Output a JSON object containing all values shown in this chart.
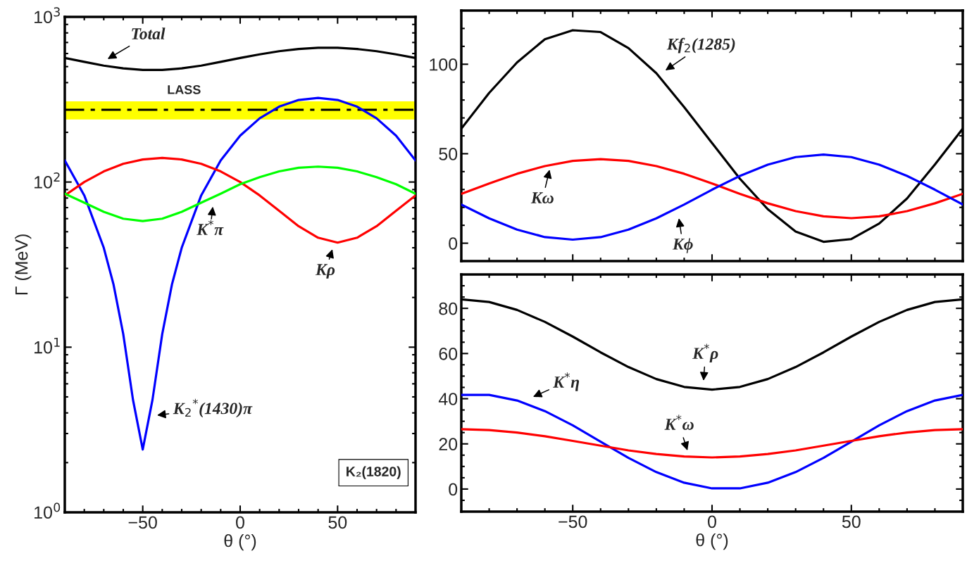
{
  "chart_data": [
    {
      "type": "line",
      "xlabel": "θ (°)",
      "ylabel": "Γ (MeV)",
      "log": "y",
      "xlim": [
        -90,
        90
      ],
      "xticks": [
        {
          "value": -50,
          "label": "−50"
        },
        0,
        50
      ],
      "ylim": [
        1,
        1000
      ],
      "yticks": [
        {
          "value": 1,
          "label": "10$^{0}$"
        },
        {
          "value": 10,
          "label": "10$^{1}$"
        },
        {
          "value": 100,
          "label": "10$^{2}$"
        },
        {
          "value": 1000,
          "label": "10$^{3}$"
        }
      ],
      "series": [
        {
          "color": "#000000",
          "x": [
            -90,
            -80,
            -70,
            -60,
            -50,
            -40,
            -30,
            -20,
            -10,
            0,
            10,
            20,
            30,
            40,
            50,
            60,
            70,
            80,
            90
          ],
          "values": [
            564,
            534,
            507,
            488,
            477,
            477,
            488,
            507,
            534,
            564,
            593,
            620,
            639,
            650,
            650,
            639,
            620,
            593,
            564
          ]
        },
        {
          "color": "#0000ff",
          "x": [
            -90,
            -80,
            -70,
            -65,
            -60,
            -55,
            -50,
            -45,
            -40,
            -35,
            -30,
            -20,
            -10,
            0,
            10,
            20,
            30,
            40,
            50,
            60,
            70,
            80,
            90
          ],
          "values": [
            135,
            83,
            40,
            24,
            12,
            4.8,
            2.4,
            4.8,
            12,
            24,
            40,
            83,
            135,
            191,
            243,
            286,
            314,
            323,
            314,
            286,
            243,
            191,
            135
          ]
        },
        {
          "color": "#ff0000",
          "x": [
            -90,
            -80,
            -70,
            -60,
            -50,
            -40,
            -30,
            -20,
            -10,
            0,
            10,
            20,
            30,
            40,
            50,
            60,
            70,
            80,
            90
          ],
          "values": [
            83,
            100,
            116,
            129,
            137,
            140,
            137,
            129,
            116,
            100,
            83,
            67,
            54,
            46,
            43,
            46,
            54,
            67,
            83
          ]
        },
        {
          "color": "#00ff00",
          "x": [
            -90,
            -80,
            -70,
            -60,
            -50,
            -40,
            -30,
            -20,
            -10,
            0,
            10,
            20,
            30,
            40,
            50,
            60,
            70,
            80,
            90
          ],
          "values": [
            85,
            75,
            66,
            60,
            58,
            60,
            66,
            75,
            85,
            97,
            107,
            116,
            122,
            124,
            122,
            116,
            107,
            97,
            85
          ]
        }
      ],
      "ref_lines": [
        {
          "axis": "y",
          "value": 274,
          "label": "LASS",
          "color": "#000000",
          "line_style": "dashdot"
        }
      ],
      "bands": [
        {
          "axis": "y",
          "from": 239,
          "to": 308,
          "color": "#ffff00"
        }
      ],
      "annotations": [
        "Total",
        "K$^{*}$π",
        "Kρ",
        "K$_{2}$$^{*}$(1430)π",
        "K₂(1820)"
      ]
    },
    {
      "type": "line",
      "tick_labels": "y",
      "xlim": [
        -90,
        90
      ],
      "xticks": [
        -50,
        0,
        50
      ],
      "ylim": [
        -10,
        130
      ],
      "yticks": [
        0,
        50,
        100
      ],
      "series": [
        {
          "color": "#000000",
          "x": [
            -90,
            -80,
            -70,
            -60,
            -50,
            -40,
            -30,
            -20,
            -10,
            0,
            10,
            20,
            30,
            40,
            50,
            60,
            70,
            80,
            90
          ],
          "values": [
            64,
            84,
            101,
            114,
            119,
            118,
            109,
            95,
            76,
            56,
            36,
            19,
            6.5,
            0.8,
            2.3,
            11,
            25,
            44,
            64
          ]
        },
        {
          "color": "#ff0000",
          "x": [
            -90,
            -80,
            -70,
            -60,
            -50,
            -40,
            -30,
            -20,
            -10,
            0,
            10,
            20,
            30,
            40,
            50,
            60,
            70,
            80,
            90
          ],
          "values": [
            27.6,
            33.4,
            38.8,
            43.1,
            46.0,
            47.0,
            46.0,
            43.1,
            38.8,
            33.4,
            27.6,
            22.3,
            17.9,
            15.0,
            14.0,
            15.0,
            17.9,
            22.3,
            27.6
          ]
        },
        {
          "color": "#0000ff",
          "x": [
            -90,
            -80,
            -70,
            -60,
            -50,
            -40,
            -30,
            -20,
            -10,
            0,
            10,
            20,
            30,
            40,
            50,
            60,
            70,
            80,
            90
          ],
          "values": [
            21.6,
            13.9,
            7.6,
            3.4,
            2.0,
            3.4,
            7.6,
            13.9,
            21.6,
            29.9,
            37.6,
            43.9,
            48.1,
            49.5,
            48.1,
            43.9,
            37.6,
            29.9,
            21.6
          ]
        }
      ],
      "annotations": [
        "Kf$_{2}$(1285)",
        "Kω",
        "Kϕ"
      ]
    },
    {
      "type": "line",
      "xlabel": "θ (°)",
      "xlim": [
        -90,
        90
      ],
      "xticks": [
        {
          "value": -50,
          "label": "−50"
        },
        0,
        50
      ],
      "ylim": [
        -10,
        95
      ],
      "yticks": [
        0,
        20,
        40,
        60,
        80
      ],
      "series": [
        {
          "color": "#000000",
          "x": [
            -90,
            -80,
            -70,
            -60,
            -50,
            -40,
            -30,
            -20,
            -10,
            0,
            10,
            20,
            30,
            40,
            50,
            60,
            70,
            80,
            90
          ],
          "values": [
            84,
            82.8,
            79.3,
            74,
            67.5,
            60.5,
            54,
            48.7,
            45.2,
            44,
            45.2,
            48.7,
            54,
            60.5,
            67.5,
            74,
            79.3,
            82.8,
            84
          ]
        },
        {
          "color": "#0000ff",
          "x": [
            -90,
            -80,
            -70,
            -60,
            -50,
            -40,
            -30,
            -20,
            -10,
            0,
            10,
            20,
            30,
            40,
            50,
            60,
            70,
            80,
            90
          ],
          "values": [
            41.7,
            41.7,
            39.2,
            34.5,
            28.2,
            21,
            13.8,
            7.5,
            2.8,
            0.3,
            0.3,
            2.8,
            7.5,
            13.8,
            21,
            28.2,
            34.5,
            39.2,
            41.7
          ]
        },
        {
          "color": "#ff0000",
          "x": [
            -90,
            -80,
            -70,
            -60,
            -50,
            -40,
            -30,
            -20,
            -10,
            0,
            10,
            20,
            30,
            40,
            50,
            60,
            70,
            80,
            90
          ],
          "values": [
            26.5,
            26.1,
            25.0,
            23.4,
            21.3,
            19.2,
            17.1,
            15.5,
            14.4,
            14,
            14.4,
            15.5,
            17.1,
            19.2,
            21.3,
            23.4,
            25.0,
            26.1,
            26.5
          ]
        }
      ],
      "annotations": [
        "K$^{*}$ρ",
        "K$^{*}$η",
        "K$^{*}$ω"
      ]
    }
  ]
}
